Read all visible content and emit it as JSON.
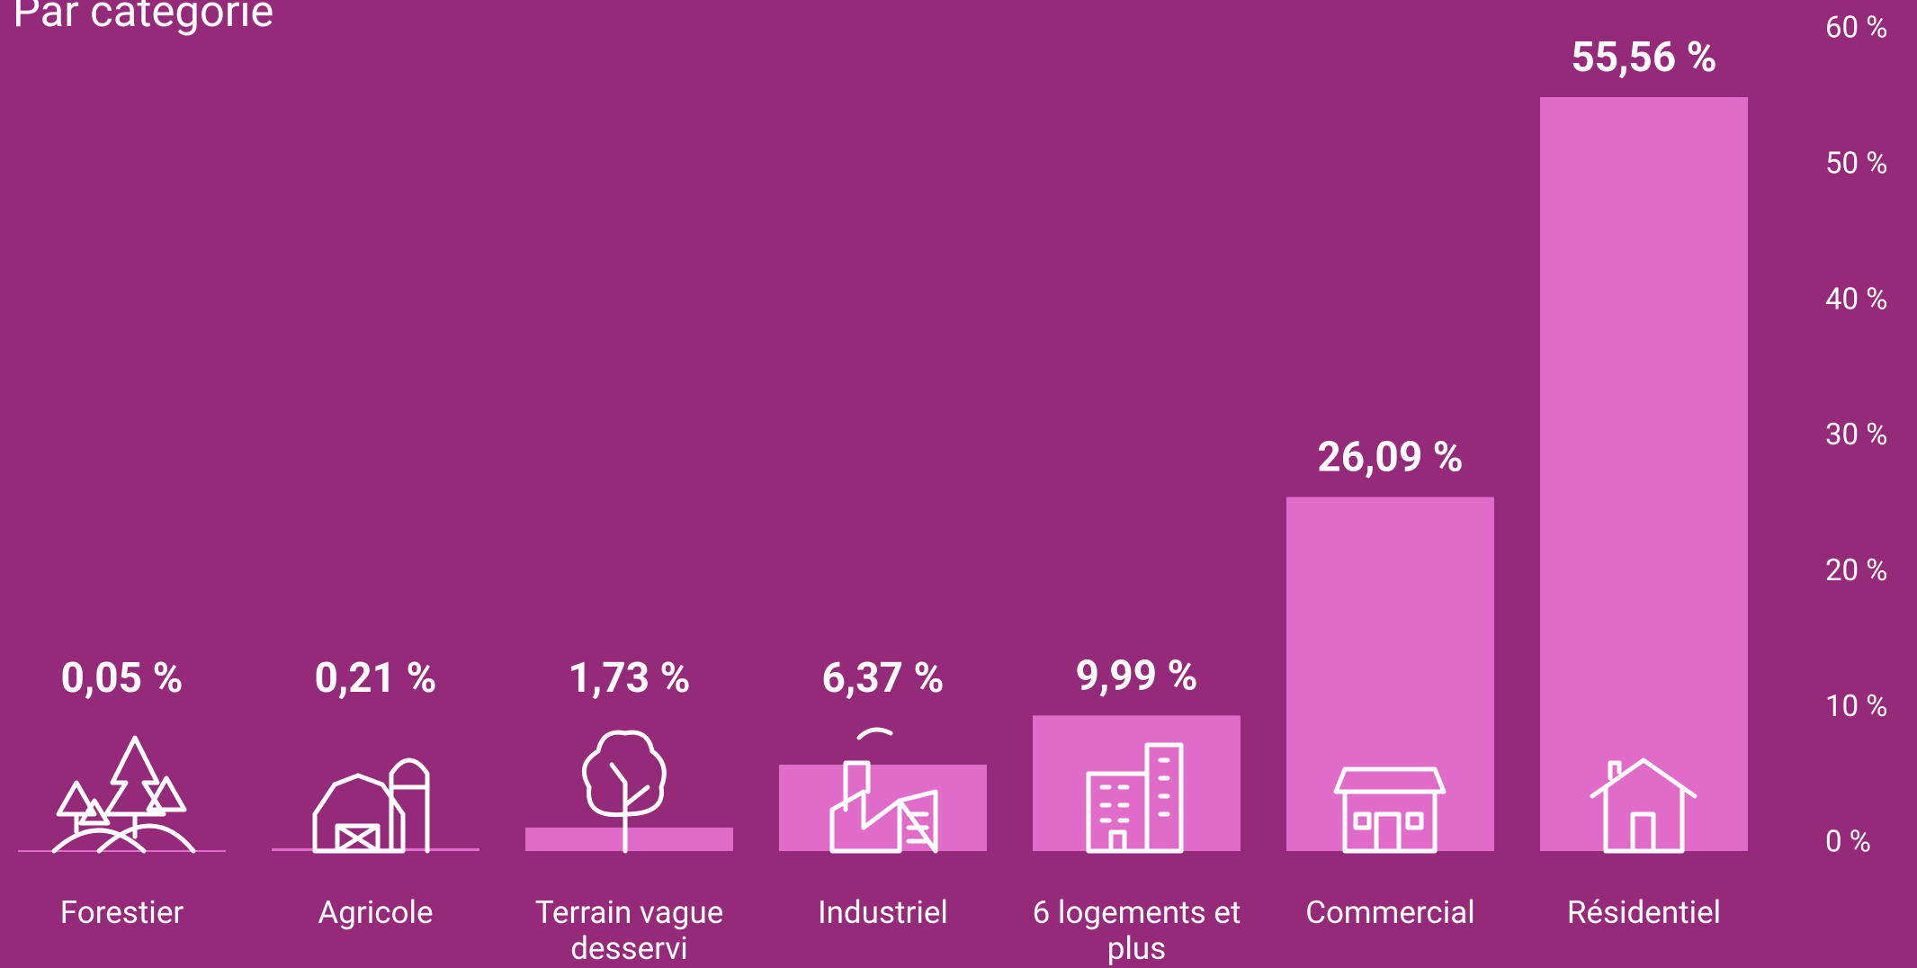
{
  "chart_data": {
    "type": "bar",
    "title": "Par catégorie",
    "categories": [
      "Forestier",
      "Agricole",
      "Terrain vague desservi",
      "Industriel",
      "6 logements et plus",
      "Commercial",
      "Résidentiel"
    ],
    "values": [
      0.05,
      0.21,
      1.73,
      6.37,
      9.99,
      26.09,
      55.56
    ],
    "value_labels": [
      "0,05 %",
      "0,21 %",
      "1,73 %",
      "6,37 %",
      "9,99 %",
      "26,09 %",
      "55,56 %"
    ],
    "color": "#e06bc9",
    "ylim": [
      0,
      60
    ],
    "yticks": [
      {
        "value": 0,
        "label": "0 %"
      },
      {
        "value": 10,
        "label": "10 %"
      },
      {
        "value": 20,
        "label": "20 %"
      },
      {
        "value": 30,
        "label": "30 %"
      },
      {
        "value": 40,
        "label": "40 %"
      },
      {
        "value": 50,
        "label": "50 %"
      },
      {
        "value": 60,
        "label": "60 %"
      }
    ],
    "grid": false
  }
}
